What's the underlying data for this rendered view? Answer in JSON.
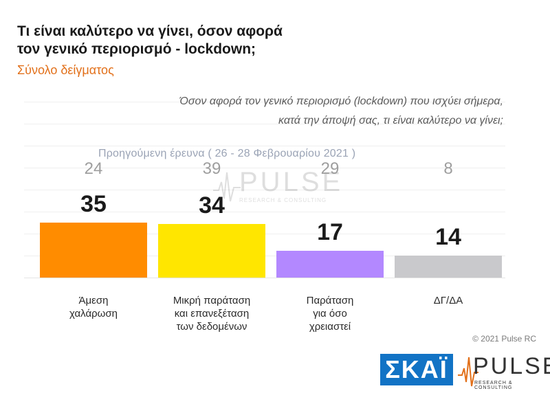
{
  "header": {
    "title_line1": "Τι είναι καλύτερο να γίνει, όσον αφορά",
    "title_line2": "τον γενικό περιορισμό - lockdown;",
    "subtitle": "Σύνολο δείγματος"
  },
  "question": {
    "line1": "Όσον αφορά τον γενικό περιορισμό (lockdown) που ισχύει σήμερα,",
    "line2": "κατά την άποψή σας, τι είναι καλύτερο να γίνει;"
  },
  "previous_survey_label": "Προηγούμενη έρευνα  ( 26 - 28  Φεβρουαρίου  2021 )",
  "watermark": {
    "text": "PULSE",
    "sub": "RESEARCH & CONSULTING"
  },
  "chart_data": {
    "type": "bar",
    "categories": [
      "Άμεση\nχαλάρωση",
      "Μικρή παράταση\nκαι επανεξέταση\nτων δεδομένων",
      "Παράταση\nγια όσο\nχρειαστεί",
      "ΔΓ/ΔΑ"
    ],
    "values": [
      35,
      34,
      17,
      14
    ],
    "previous_values": [
      24,
      39,
      29,
      8
    ],
    "colors": [
      "#ff8c00",
      "#ffe600",
      "#b388ff",
      "#c9c9cc"
    ],
    "ylim": [
      0,
      40
    ],
    "grid": true
  },
  "footer": {
    "copyright": "© 2021 Pulse RC",
    "skai_logo": "ΣΚΑΪ",
    "pulse_logo": "PULSE",
    "pulse_logo_sub": "RESEARCH & CONSULTING"
  }
}
